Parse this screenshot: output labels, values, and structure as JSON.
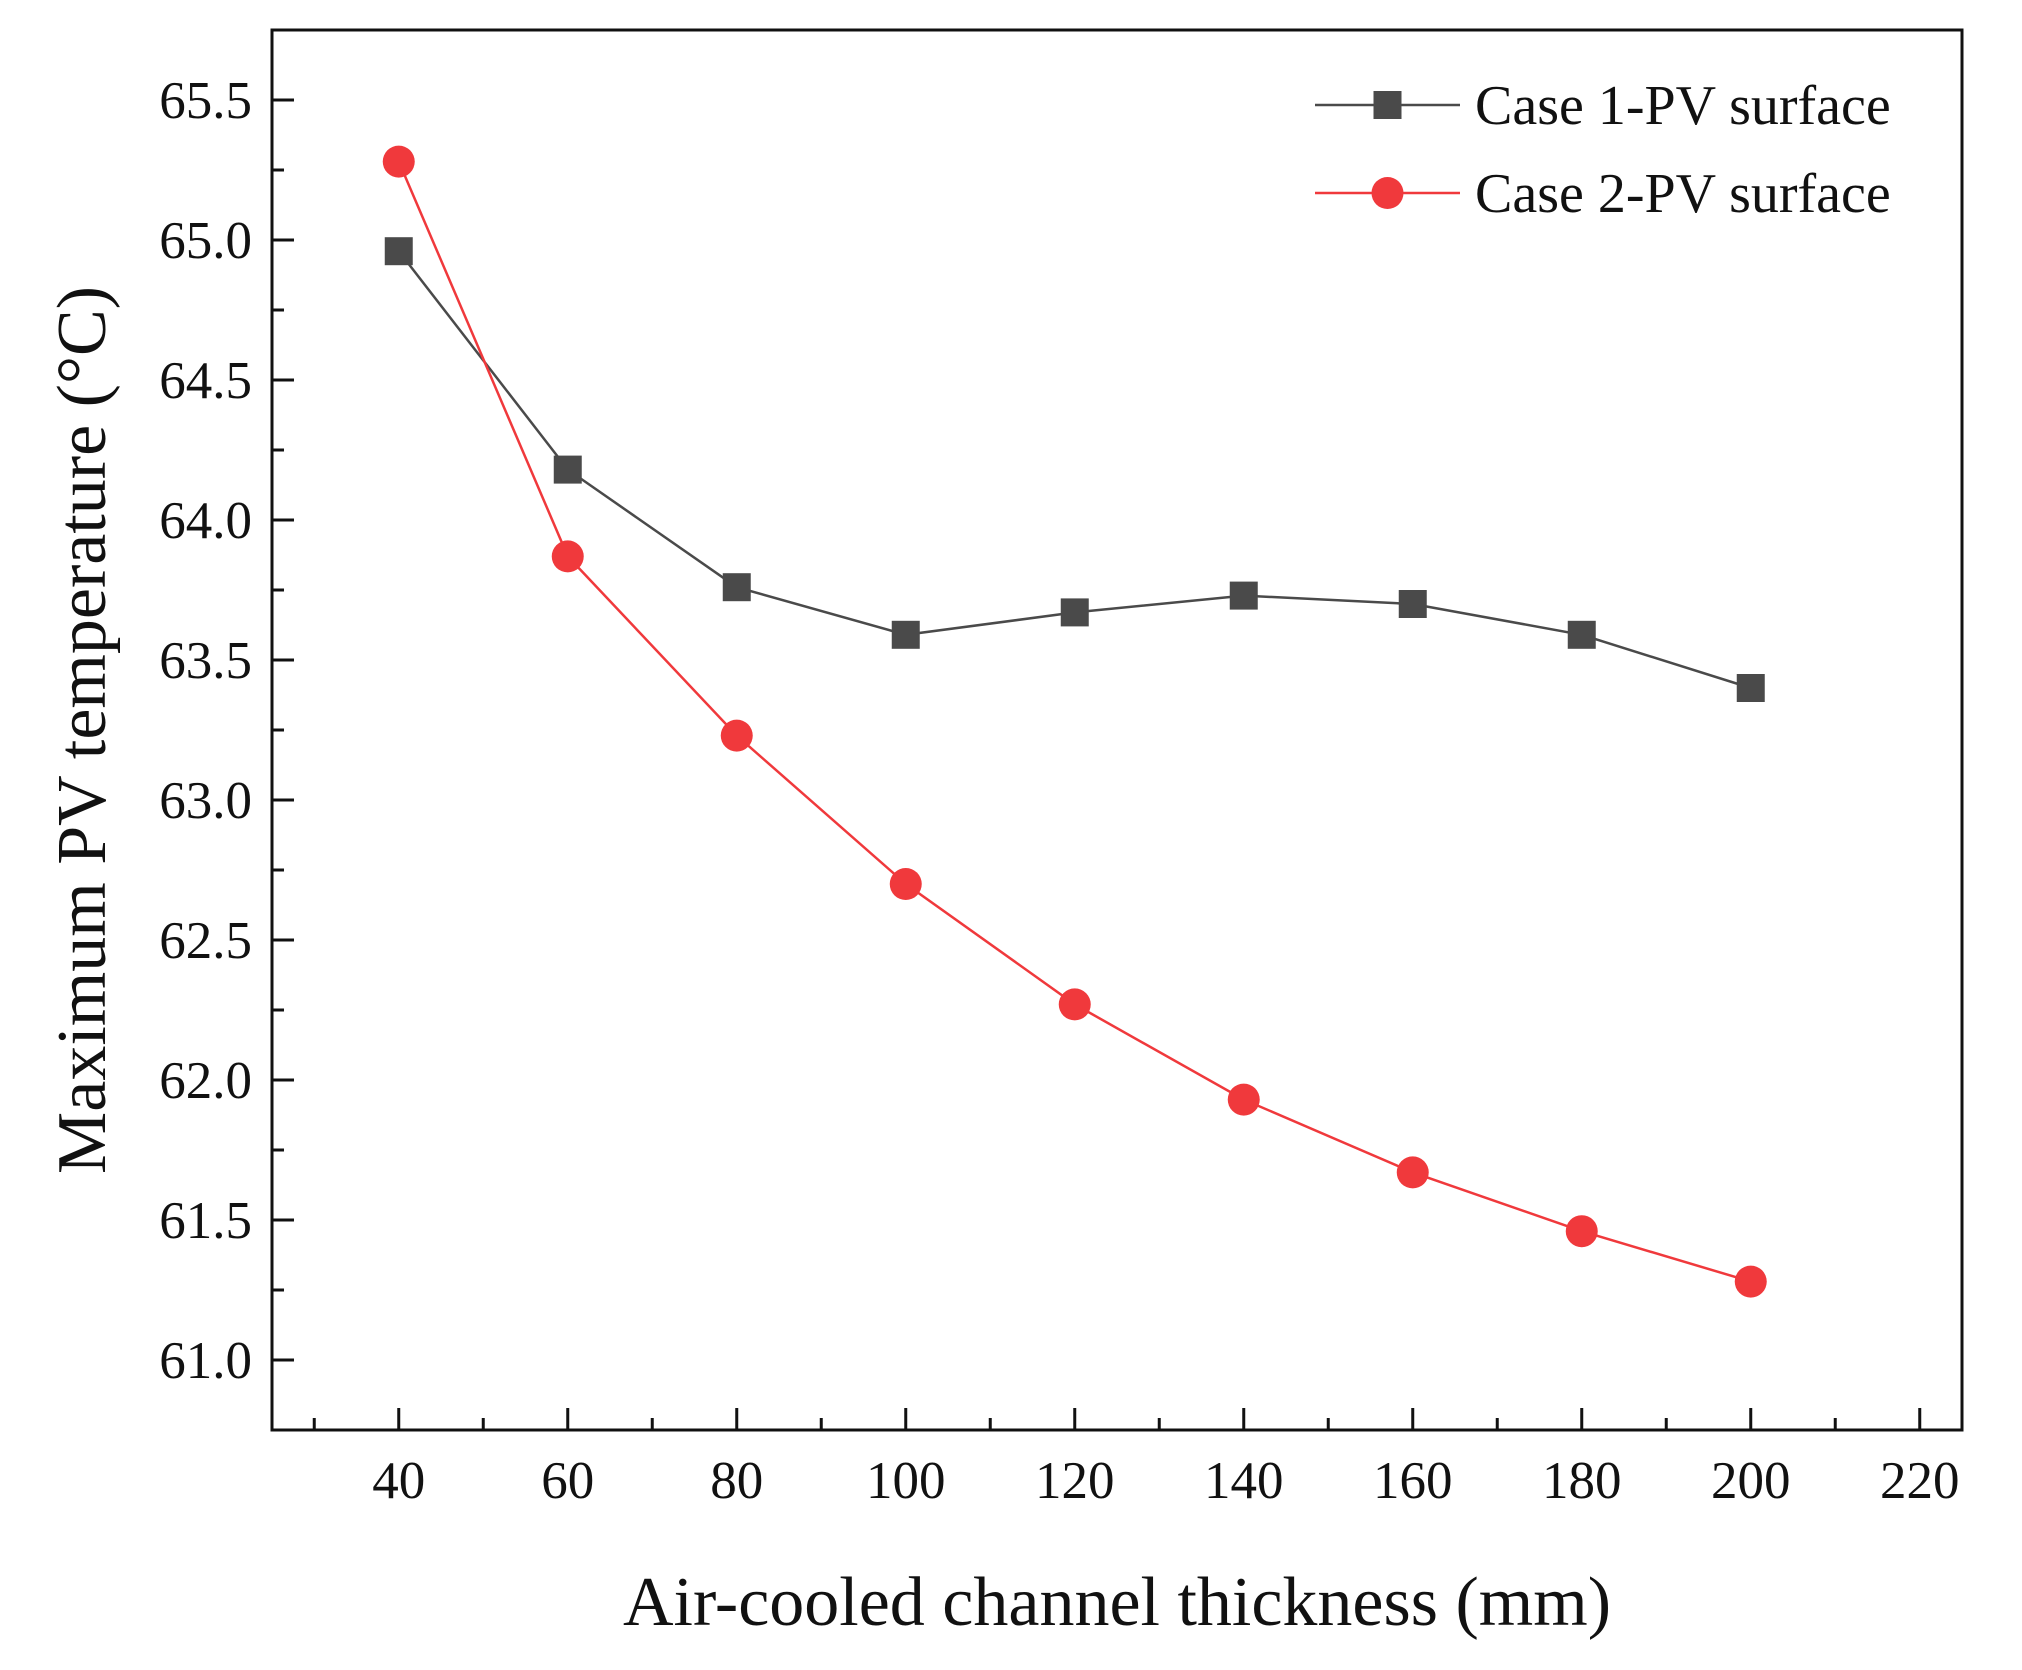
{
  "chart_data": {
    "type": "line",
    "title": "",
    "xlabel": "Air-cooled channel thickness (mm)",
    "ylabel": "Maximum PV temperature (°C)",
    "xlim": [
      25,
      225
    ],
    "ylim": [
      60.75,
      65.75
    ],
    "xticks": [
      40,
      60,
      80,
      100,
      120,
      140,
      160,
      180,
      200,
      220
    ],
    "xtick_labels": [
      "40",
      "60",
      "80",
      "100",
      "120",
      "140",
      "160",
      "180",
      "200",
      "220"
    ],
    "yticks": [
      61.0,
      61.5,
      62.0,
      62.5,
      63.0,
      63.5,
      64.0,
      64.5,
      65.0,
      65.5
    ],
    "ytick_labels": [
      "61.0",
      "61.5",
      "62.0",
      "62.5",
      "63.0",
      "63.5",
      "64.0",
      "64.5",
      "65.0",
      "65.5"
    ],
    "x": [
      40,
      60,
      80,
      100,
      120,
      140,
      160,
      180,
      200
    ],
    "series": [
      {
        "name": "Case 1-PV surface",
        "color": "#4a4a4a",
        "marker": "square",
        "values": [
          64.96,
          64.18,
          63.76,
          63.59,
          63.67,
          63.73,
          63.7,
          63.59,
          63.4
        ]
      },
      {
        "name": "Case 2-PV surface",
        "color": "#f0393c",
        "marker": "circle",
        "values": [
          65.28,
          63.87,
          63.23,
          62.7,
          62.27,
          61.93,
          61.67,
          61.46,
          61.28
        ]
      }
    ],
    "legend": "top-right",
    "grid": false
  }
}
